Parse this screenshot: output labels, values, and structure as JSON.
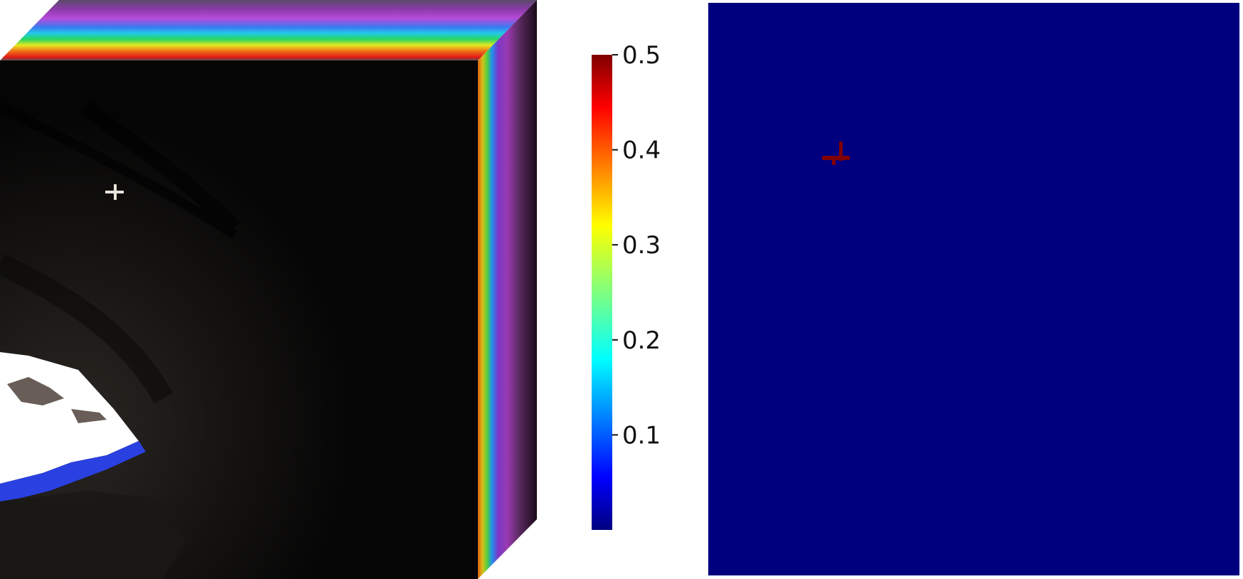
{
  "figure": {
    "panels": [
      {
        "name": "hyperspectral-cube",
        "description_visible": false
      },
      {
        "name": "colorbar"
      },
      {
        "name": "detection-map"
      }
    ]
  },
  "colorbar": {
    "colormap": "jet",
    "range": [
      0.0,
      0.5
    ],
    "ticks": [
      {
        "value": 0.5,
        "label": "0.5"
      },
      {
        "value": 0.4,
        "label": "0.4"
      },
      {
        "value": 0.3,
        "label": "0.3"
      },
      {
        "value": 0.2,
        "label": "0.2"
      },
      {
        "value": 0.1,
        "label": "0.1"
      }
    ]
  },
  "colors": {
    "map_background": "#00007f",
    "target": "#7f0000",
    "scene_dark": "#0b0a09",
    "scene_bright": "#ffffff"
  }
}
